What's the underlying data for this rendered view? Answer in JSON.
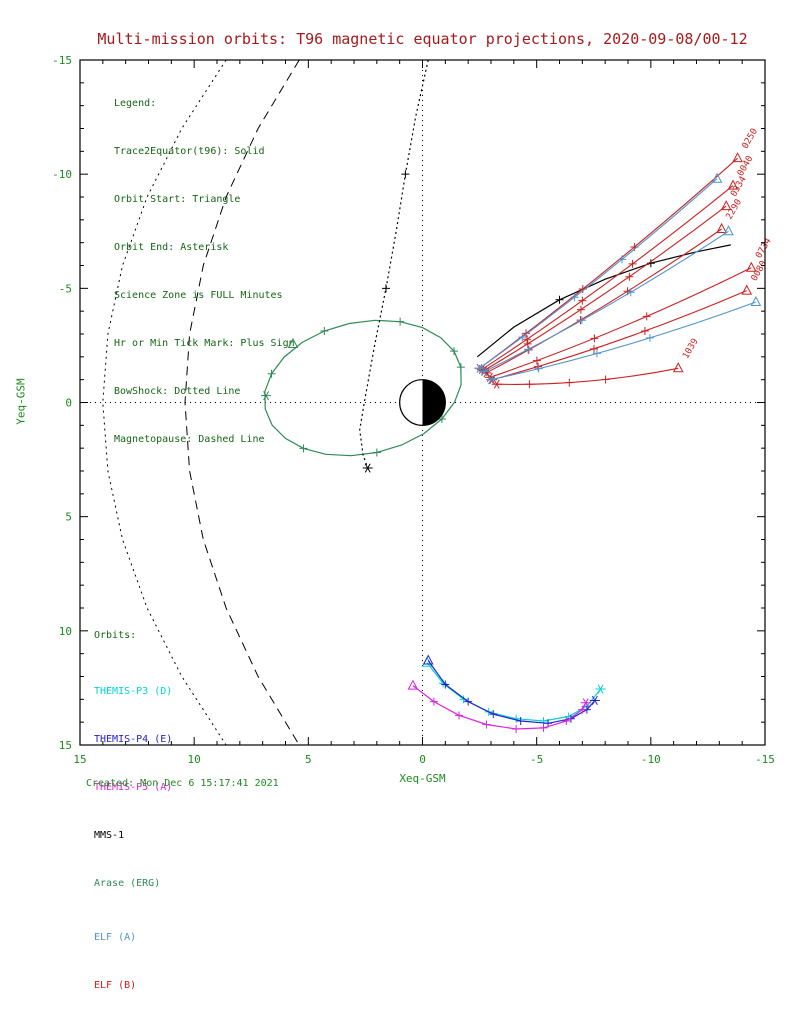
{
  "title": "Multi-mission orbits: T96 magnetic equator projections, 2020-09-08/00-12",
  "footer": "Created: Mon Dec 6 15:17:41 2021",
  "legend": {
    "lines": [
      "Legend:",
      "Trace2Equator(t96): Solid",
      "Orbit Start: Triangle",
      "Orbit End: Asterisk",
      "Science Zone is FULL Minutes",
      "Hr or Min Tick Mark: Plus Sign",
      "BowShock: Dotted Line",
      "Magnetopause: Dashed Line"
    ]
  },
  "orbit_legend": {
    "heading": "Orbits:",
    "entries": [
      {
        "label": "THEMIS-P3 (D)",
        "color": "#00d5d5"
      },
      {
        "label": "THEMIS-P4 (E)",
        "color": "#2222cc"
      },
      {
        "label": "THEMIS-P5 (A)",
        "color": "#dd22dd"
      },
      {
        "label": "MMS-1",
        "color": "#000000"
      },
      {
        "label": "Arase (ERG)",
        "color": "#2e8b57"
      },
      {
        "label": "ELF (A)",
        "color": "#4f94cd"
      },
      {
        "label": "ELF (B)",
        "color": "#cc2020"
      }
    ]
  },
  "colors": {
    "title": "#a51a1a",
    "axis_text": "#1d8a1d",
    "legend_text": "#166616",
    "frame": "#000000"
  },
  "chart_data": {
    "type": "line",
    "title": "Multi-mission orbits: T96 magnetic equator projections, 2020-09-08/00-12",
    "xlabel": "Xeq-GSM",
    "ylabel": "Yeq-GSM",
    "xlim": [
      15,
      -15
    ],
    "ylim": [
      -15,
      15
    ],
    "x_ticks": [
      15,
      10,
      5,
      0,
      -5,
      -10,
      -15
    ],
    "y_ticks": [
      -15,
      -10,
      -5,
      0,
      5,
      10,
      15
    ],
    "minor_tick_step": 1,
    "grid": false,
    "earth": {
      "center": [
        0,
        0
      ],
      "radius": 1,
      "shaded_side": "-X"
    },
    "boundaries": {
      "bow_shock": {
        "style": "dotted",
        "points": [
          [
            8.6,
            -15
          ],
          [
            10.54,
            -12
          ],
          [
            12.06,
            -9
          ],
          [
            13.14,
            -6
          ],
          [
            13.78,
            -3
          ],
          [
            14,
            0
          ],
          [
            13.78,
            3
          ],
          [
            13.14,
            6
          ],
          [
            12.06,
            9
          ],
          [
            10.54,
            12
          ],
          [
            8.6,
            15
          ]
        ]
      },
      "magnetopause": {
        "style": "dashed",
        "points": [
          [
            5.4,
            -15
          ],
          [
            7.2,
            -12
          ],
          [
            8.6,
            -9
          ],
          [
            9.6,
            -6
          ],
          [
            10.2,
            -3
          ],
          [
            10.4,
            0
          ],
          [
            10.2,
            3
          ],
          [
            9.6,
            6
          ],
          [
            8.6,
            9
          ],
          [
            7.2,
            12
          ],
          [
            5.4,
            15
          ]
        ]
      }
    },
    "series": [
      {
        "name": "Arase (ERG)",
        "color": "#2e8b57",
        "closed": true,
        "points": [
          [
            -1.68,
            -1.55
          ],
          [
            -1.69,
            -0.78
          ],
          [
            -1.4,
            -0.01
          ],
          [
            -0.85,
            0.72
          ],
          [
            -0.06,
            1.36
          ],
          [
            0.91,
            1.86
          ],
          [
            2.0,
            2.19
          ],
          [
            3.13,
            2.33
          ],
          [
            4.23,
            2.27
          ],
          [
            5.21,
            2.01
          ],
          [
            6.01,
            1.57
          ],
          [
            6.59,
            0.98
          ],
          [
            6.89,
            0.28
          ],
          [
            6.9,
            -0.49
          ],
          [
            6.61,
            -1.26
          ],
          [
            6.06,
            -1.99
          ],
          [
            5.27,
            -2.63
          ],
          [
            4.3,
            -3.13
          ],
          [
            3.21,
            -3.46
          ],
          [
            2.08,
            -3.6
          ],
          [
            0.98,
            -3.54
          ],
          [
            0.0,
            -3.28
          ],
          [
            -0.8,
            -2.84
          ],
          [
            -1.38,
            -2.25
          ]
        ],
        "start": [
          5.67,
          -2.56
        ],
        "end": [
          6.85,
          -0.3
        ],
        "plus": [
          [
            -1.68,
            -1.55
          ],
          [
            -0.85,
            0.72
          ],
          [
            2.0,
            2.19
          ],
          [
            5.21,
            2.01
          ],
          [
            6.61,
            -1.26
          ],
          [
            4.3,
            -3.13
          ],
          [
            0.98,
            -3.54
          ],
          [
            -1.38,
            -2.25
          ]
        ]
      },
      {
        "name": "MMS-1 inbound",
        "color": "#000000",
        "dash": "2,3",
        "points": [
          [
            -0.25,
            -15
          ],
          [
            0.3,
            -12.5
          ],
          [
            0.75,
            -10
          ],
          [
            1.15,
            -7.5
          ],
          [
            1.6,
            -5
          ],
          [
            2.1,
            -2.5
          ],
          [
            2.55,
            0
          ],
          [
            2.75,
            1.2
          ],
          [
            2.6,
            2.3
          ],
          [
            2.4,
            2.87
          ]
        ],
        "end": [
          2.4,
          2.87
        ],
        "plus": [
          [
            0.75,
            -10
          ],
          [
            1.6,
            -5
          ]
        ]
      },
      {
        "name": "MMS-1 outbound",
        "color": "#000000",
        "points": [
          [
            -2.4,
            -2.0
          ],
          [
            -4.0,
            -3.3
          ],
          [
            -6.0,
            -4.5
          ],
          [
            -8.0,
            -5.4
          ],
          [
            -10.0,
            -6.1
          ],
          [
            -12.0,
            -6.6
          ],
          [
            -13.5,
            -6.9
          ]
        ],
        "plus": [
          [
            -6.0,
            -4.5
          ],
          [
            -10.0,
            -6.1
          ]
        ]
      },
      {
        "name": "THEMIS-P3 (D)",
        "color": "#00d5d5",
        "points": [
          [
            -0.2,
            11.4
          ],
          [
            -0.9,
            12.3
          ],
          [
            -1.8,
            13.0
          ],
          [
            -2.9,
            13.55
          ],
          [
            -4.1,
            13.85
          ],
          [
            -5.3,
            13.95
          ],
          [
            -6.4,
            13.75
          ],
          [
            -7.2,
            13.3
          ],
          [
            -7.8,
            12.55
          ]
        ],
        "start": [
          -0.2,
          11.4
        ],
        "end": [
          -7.8,
          12.55
        ],
        "plus": [
          [
            -0.9,
            12.3
          ],
          [
            -1.8,
            13.0
          ],
          [
            -2.9,
            13.55
          ],
          [
            -4.1,
            13.85
          ],
          [
            -5.3,
            13.95
          ],
          [
            -6.4,
            13.75
          ],
          [
            -7.2,
            13.3
          ]
        ]
      },
      {
        "name": "THEMIS-P4 (E)",
        "color": "#2222cc",
        "points": [
          [
            -0.25,
            11.3
          ],
          [
            -1.0,
            12.35
          ],
          [
            -2.0,
            13.1
          ],
          [
            -3.1,
            13.65
          ],
          [
            -4.3,
            13.95
          ],
          [
            -5.5,
            14.05
          ],
          [
            -6.5,
            13.85
          ],
          [
            -7.2,
            13.45
          ],
          [
            -7.55,
            13.05
          ]
        ],
        "start": [
          -0.25,
          11.3
        ],
        "end": [
          -7.55,
          13.05
        ],
        "plus": [
          [
            -1.0,
            12.35
          ],
          [
            -2.0,
            13.1
          ],
          [
            -3.1,
            13.65
          ],
          [
            -4.3,
            13.95
          ],
          [
            -5.5,
            14.05
          ],
          [
            -6.5,
            13.85
          ],
          [
            -7.2,
            13.45
          ]
        ]
      },
      {
        "name": "THEMIS-P5 (A)",
        "color": "#dd22dd",
        "points": [
          [
            0.42,
            12.4
          ],
          [
            -0.5,
            13.1
          ],
          [
            -1.6,
            13.7
          ],
          [
            -2.8,
            14.1
          ],
          [
            -4.1,
            14.3
          ],
          [
            -5.3,
            14.25
          ],
          [
            -6.3,
            13.95
          ],
          [
            -7.0,
            13.45
          ],
          [
            -7.15,
            13.15
          ]
        ],
        "start": [
          0.42,
          12.4
        ],
        "end": [
          -7.15,
          13.15
        ],
        "plus": [
          [
            -0.5,
            13.1
          ],
          [
            -1.6,
            13.7
          ],
          [
            -2.8,
            14.1
          ],
          [
            -4.1,
            14.3
          ],
          [
            -5.3,
            14.25
          ],
          [
            -6.3,
            13.95
          ],
          [
            -7.0,
            13.45
          ]
        ]
      }
    ],
    "elf_traces": [
      {
        "sc": "ELF (B)",
        "color": "#cc2020",
        "start": [
          -13.8,
          -10.7
        ],
        "end": [
          -2.5,
          -1.5
        ],
        "label": "0250"
      },
      {
        "sc": "ELF (B)",
        "color": "#cc2020",
        "start": [
          -13.6,
          -9.5
        ],
        "end": [
          -2.6,
          -1.45
        ],
        "label": "0040"
      },
      {
        "sc": "ELF (B)",
        "color": "#cc2020",
        "start": [
          -13.3,
          -8.6
        ],
        "end": [
          -2.7,
          -1.4
        ],
        "label": "0334"
      },
      {
        "sc": "ELF (B)",
        "color": "#cc2020",
        "start": [
          -13.1,
          -7.6
        ],
        "end": [
          -2.8,
          -1.3
        ],
        "label": "2290"
      },
      {
        "sc": "ELF (B)",
        "color": "#cc2020",
        "start": [
          -14.4,
          -5.9
        ],
        "end": [
          -2.95,
          -1.1
        ],
        "label": "0734"
      },
      {
        "sc": "ELF (B)",
        "color": "#cc2020",
        "start": [
          -14.2,
          -4.9
        ],
        "end": [
          -3.05,
          -1.0
        ],
        "label": "0080"
      },
      {
        "sc": "ELF (B)",
        "color": "#cc2020",
        "start": [
          -11.2,
          -1.5
        ],
        "end": [
          -3.25,
          -0.8
        ],
        "label": "1039"
      },
      {
        "sc": "ELF (A)",
        "color": "#4f94cd",
        "start": [
          -12.9,
          -9.8
        ],
        "end": [
          -2.5,
          -1.5
        ]
      },
      {
        "sc": "ELF (A)",
        "color": "#4f94cd",
        "start": [
          -13.4,
          -7.5
        ],
        "end": [
          -2.7,
          -1.35
        ]
      },
      {
        "sc": "ELF (A)",
        "color": "#4f94cd",
        "start": [
          -14.6,
          -4.4
        ],
        "end": [
          -3.0,
          -1.0
        ]
      }
    ],
    "label_color": "#cc2020",
    "label_rotation": -60
  }
}
